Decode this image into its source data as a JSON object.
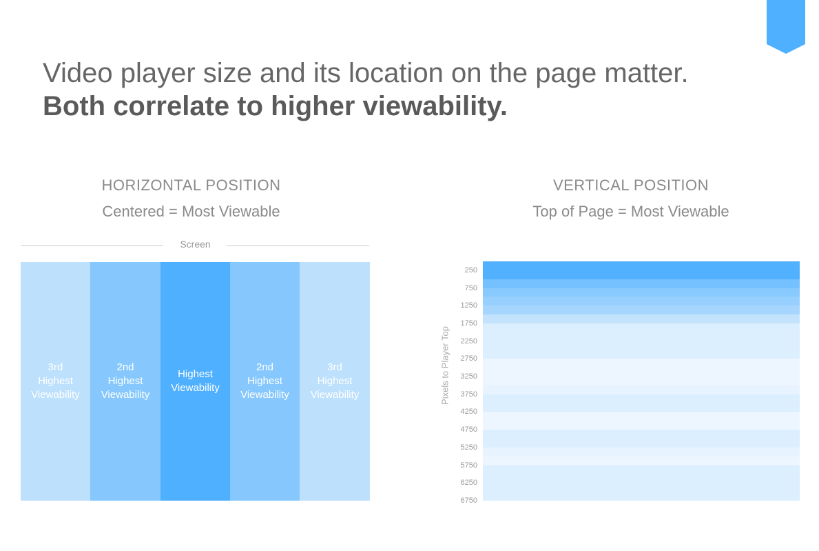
{
  "header": {
    "title_light": "Video player size and its location on the page matter.",
    "title_bold": "Both correlate to higher viewability.",
    "accent_color": "#4fb0ff"
  },
  "chart_data": [
    {
      "type": "heatmap",
      "title": "HORIZONTAL POSITION",
      "subtitle": "Centered = Most Viewable",
      "xlabel": "Screen",
      "categories": [
        "3rd Highest Viewability",
        "2nd Highest Viewability",
        "Highest Viewability",
        "2nd Highest Viewability",
        "3rd Highest Viewability"
      ],
      "labels": [
        "3rd\nHighest\nViewability",
        "2nd\nHighest\nViewability",
        "Highest\nViewability",
        "2nd\nHighest\nViewability",
        "3rd\nHighest\nViewability"
      ],
      "rank": [
        3,
        2,
        1,
        2,
        3
      ],
      "colors": [
        "#bde0fd",
        "#86c8fd",
        "#4fb0ff",
        "#86c8fd",
        "#bde0fd"
      ]
    },
    {
      "type": "heatmap",
      "title": "VERTICAL POSITION",
      "subtitle": "Top of Page = Most Viewable",
      "ylabel": "Pixels to Player Top",
      "ticks": [
        "250",
        "750",
        "1250",
        "1750",
        "2250",
        "2750",
        "3250",
        "3750",
        "4250",
        "4750",
        "5250",
        "5750",
        "6250",
        "6750"
      ],
      "ylim": [
        0,
        6750
      ],
      "bands": [
        {
          "from": 0,
          "to": 500,
          "color": "#52b1ff"
        },
        {
          "from": 500,
          "to": 750,
          "color": "#75c0fe"
        },
        {
          "from": 750,
          "to": 1000,
          "color": "#88c9fe"
        },
        {
          "from": 1000,
          "to": 1250,
          "color": "#97d0fe"
        },
        {
          "from": 1250,
          "to": 1500,
          "color": "#a6d6fd"
        },
        {
          "from": 1500,
          "to": 1750,
          "color": "#c3e3fd"
        },
        {
          "from": 1750,
          "to": 2750,
          "color": "#dcefff"
        },
        {
          "from": 2750,
          "to": 3500,
          "color": "#edf6ff"
        },
        {
          "from": 3500,
          "to": 3750,
          "color": "#e7f3fe"
        },
        {
          "from": 3750,
          "to": 4250,
          "color": "#dcefff"
        },
        {
          "from": 4250,
          "to": 4750,
          "color": "#edf6ff"
        },
        {
          "from": 4750,
          "to": 5250,
          "color": "#dcefff"
        },
        {
          "from": 5250,
          "to": 5500,
          "color": "#e7f3fe"
        },
        {
          "from": 5500,
          "to": 5750,
          "color": "#edf6ff"
        },
        {
          "from": 5750,
          "to": 6750,
          "color": "#dcefff"
        }
      ]
    }
  ]
}
